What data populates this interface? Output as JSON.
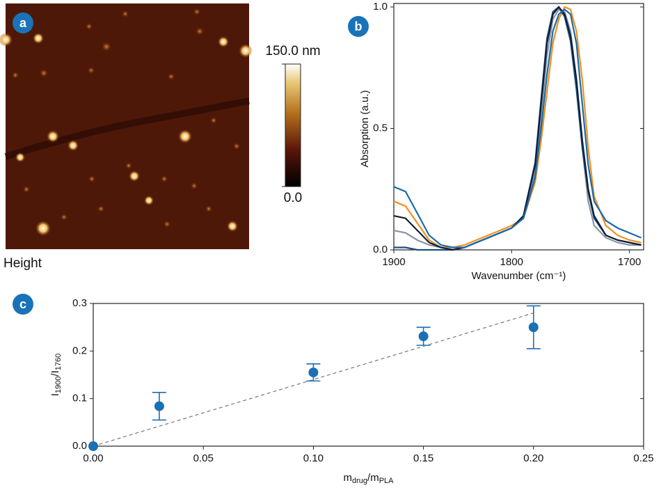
{
  "chart_data": [
    {
      "type": "image",
      "label": "a",
      "caption": "Height",
      "clim": [
        0,
        150
      ],
      "colorbar_ticks": [
        {
          "value": 0,
          "label": "0.0"
        },
        {
          "value": 150,
          "label": "150.0 nm"
        }
      ]
    },
    {
      "type": "line",
      "label": "b",
      "xlabel": "Wavenumber (cm⁻¹)",
      "ylabel": "Absorption (a.u.)",
      "xlim": [
        1900,
        1688
      ],
      "xticks": [
        1900,
        1800,
        1700
      ],
      "ylim": [
        0,
        1
      ],
      "yticks": [
        {
          "value": 0,
          "label": "0.0"
        },
        0.5,
        {
          "value": 1,
          "label": "1.0"
        }
      ],
      "x": [
        1900,
        1890,
        1880,
        1870,
        1860,
        1850,
        1840,
        1830,
        1820,
        1810,
        1800,
        1790,
        1780,
        1775,
        1770,
        1765,
        1760,
        1755,
        1750,
        1745,
        1740,
        1735,
        1730,
        1720,
        1710,
        1700,
        1690
      ],
      "series": [
        {
          "color": "#8a949f",
          "values": [
            0.08,
            0.07,
            0.04,
            0.02,
            0.01,
            0.0,
            0.01,
            0.03,
            0.05,
            0.07,
            0.09,
            0.13,
            0.32,
            0.55,
            0.8,
            0.95,
            0.99,
            0.98,
            0.9,
            0.7,
            0.42,
            0.2,
            0.1,
            0.05,
            0.03,
            0.02,
            0.02
          ]
        },
        {
          "color": "#f0901e",
          "values": [
            0.2,
            0.18,
            0.11,
            0.04,
            0.01,
            0.01,
            0.02,
            0.04,
            0.06,
            0.08,
            0.1,
            0.13,
            0.28,
            0.45,
            0.65,
            0.85,
            0.95,
            1.0,
            0.99,
            0.9,
            0.7,
            0.42,
            0.22,
            0.1,
            0.06,
            0.04,
            0.03
          ]
        },
        {
          "color": "#1d4f7e",
          "values": [
            0.01,
            0.01,
            0.0,
            0.0,
            0.0,
            0.0,
            0.01,
            0.03,
            0.05,
            0.07,
            0.09,
            0.14,
            0.36,
            0.62,
            0.87,
            0.98,
            1.0,
            0.96,
            0.86,
            0.66,
            0.42,
            0.24,
            0.13,
            0.06,
            0.04,
            0.03,
            0.02
          ]
        },
        {
          "color": "#0e1e36",
          "values": [
            0.14,
            0.13,
            0.08,
            0.03,
            0.01,
            0.0,
            0.01,
            0.03,
            0.05,
            0.07,
            0.09,
            0.14,
            0.35,
            0.6,
            0.85,
            0.97,
            1.0,
            0.97,
            0.88,
            0.7,
            0.45,
            0.25,
            0.14,
            0.06,
            0.04,
            0.03,
            0.02
          ]
        },
        {
          "color": "#1b6aaa",
          "values": [
            0.26,
            0.24,
            0.15,
            0.06,
            0.02,
            0.01,
            0.01,
            0.03,
            0.05,
            0.07,
            0.09,
            0.13,
            0.3,
            0.5,
            0.72,
            0.9,
            0.97,
            0.99,
            0.97,
            0.85,
            0.6,
            0.35,
            0.2,
            0.12,
            0.09,
            0.07,
            0.05
          ]
        }
      ]
    },
    {
      "type": "scatter",
      "label": "c",
      "xlabel": [
        "m",
        "drug",
        "/m",
        "PLA"
      ],
      "ylabel": [
        "I",
        "1900",
        "/I",
        "1760"
      ],
      "xlim": [
        0,
        0.25
      ],
      "xticks": [
        {
          "value": 0,
          "label": "0.00"
        },
        0.05,
        {
          "value": 0.1,
          "label": "0.10"
        },
        0.15,
        {
          "value": 0.2,
          "label": "0.20"
        },
        0.25
      ],
      "ylim": [
        0,
        0.3
      ],
      "yticks": [
        {
          "value": 0,
          "label": "0.0"
        },
        0.1,
        0.2,
        0.3
      ],
      "color": "#1a6fb5",
      "x": [
        0,
        0.03,
        0.1,
        0.15,
        0.2
      ],
      "values": [
        0,
        0.084,
        0.155,
        0.231,
        0.25
      ],
      "errors": [
        null,
        0.029,
        0.018,
        0.019,
        0.045
      ],
      "fit": {
        "x": [
          0,
          0.2
        ],
        "y": [
          0,
          0.28
        ]
      }
    }
  ]
}
